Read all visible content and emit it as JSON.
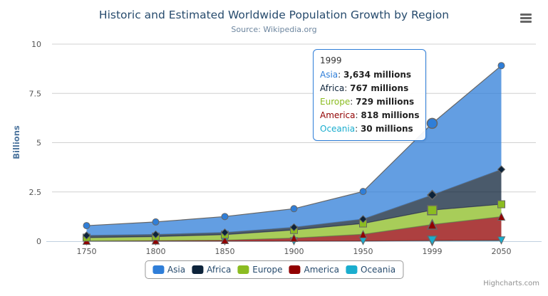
{
  "chart_data": {
    "type": "area",
    "stacking": "normal",
    "title": "Historic and Estimated Worldwide Population Growth by Region",
    "subtitle": "Source: Wikipedia.org",
    "categories": [
      "1750",
      "1800",
      "1850",
      "1900",
      "1950",
      "1999",
      "2050"
    ],
    "series": [
      {
        "name": "Asia",
        "color": "#2f7ed8",
        "marker": "circle",
        "values": [
          502,
          635,
          809,
          947,
          1402,
          3634,
          5268
        ]
      },
      {
        "name": "Africa",
        "color": "#0d233a",
        "marker": "diamond",
        "values": [
          106,
          107,
          111,
          133,
          221,
          767,
          1766
        ]
      },
      {
        "name": "Europe",
        "color": "#8bbc21",
        "marker": "square",
        "values": [
          163,
          203,
          276,
          408,
          547,
          729,
          628
        ]
      },
      {
        "name": "America",
        "color": "#910000",
        "marker": "triangle",
        "values": [
          18,
          31,
          54,
          156,
          339,
          818,
          1201
        ]
      },
      {
        "name": "Oceania",
        "color": "#1aadce",
        "marker": "triangle-down",
        "values": [
          2,
          2,
          2,
          6,
          13,
          30,
          46
        ]
      }
    ],
    "stack_top_series": "Asia",
    "unit": "millions",
    "ylabel": "Billions",
    "yticks": [
      0,
      2.5,
      5,
      7.5,
      10
    ],
    "ylim": [
      0,
      10
    ],
    "grid": true,
    "legend_position": "bottom",
    "hover_index": 5
  },
  "tooltip": {
    "title": "1999",
    "border_color": "#2f7ed8",
    "rows": [
      {
        "name": "Asia",
        "value": "3,634 millions"
      },
      {
        "name": "Africa",
        "value": "767 millions"
      },
      {
        "name": "Europe",
        "value": "729 millions"
      },
      {
        "name": "America",
        "value": "818 millions"
      },
      {
        "name": "Oceania",
        "value": "30 millions"
      }
    ]
  },
  "ui": {
    "title_color": "#274b6d",
    "subtitle_color": "#6d869f",
    "axis_label_color": "#555555",
    "axis_title_color": "#4d759e",
    "grid_color": "#d0d0d0",
    "axis_line_color": "#c0d0e0",
    "edge_line_color": "#666666",
    "legend_text_color": "#274b6d",
    "credits": "Highcharts.com",
    "export_icon": "hamburger-icon"
  }
}
